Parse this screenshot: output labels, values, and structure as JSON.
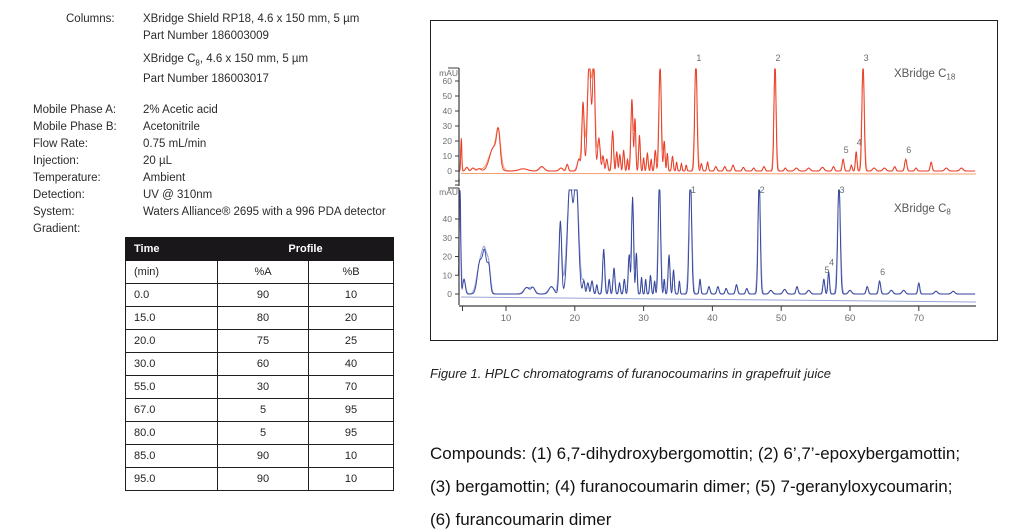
{
  "method": {
    "columns_label": "Columns:",
    "column1": {
      "line1": "XBridge Shield RP18, 4.6 x 150 mm, 5 µm",
      "line2": "Part Number 186003009"
    },
    "column2": {
      "prefix": "XBridge C",
      "sub": "8",
      "suffix": ", 4.6 x 150 mm, 5 µm",
      "line2": "Part Number 186003017"
    },
    "rows": [
      {
        "label": "Mobile Phase A:",
        "value": "2% Acetic acid"
      },
      {
        "label": "Mobile Phase B:",
        "value": "Acetonitrile"
      },
      {
        "label": "Flow Rate:",
        "value": "0.75 mL/min"
      },
      {
        "label": "Injection:",
        "value": "20 µL"
      },
      {
        "label": "Temperature:",
        "value": "Ambient"
      },
      {
        "label": "Detection:",
        "value": "UV @ 310nm"
      },
      {
        "label": "System:",
        "value": "Waters Alliance® 2695 with a 996 PDA detector"
      }
    ],
    "gradient_label": "Gradient:"
  },
  "gradient_table": {
    "header": {
      "time": "Time",
      "profile": "Profile"
    },
    "subheader": {
      "time_unit": "(min)",
      "a": "%A",
      "b": "%B"
    },
    "rows": [
      {
        "time": "0.0",
        "a": "90",
        "b": "10"
      },
      {
        "time": "15.0",
        "a": "80",
        "b": "20"
      },
      {
        "time": "20.0",
        "a": "75",
        "b": "25"
      },
      {
        "time": "30.0",
        "a": "60",
        "b": "40"
      },
      {
        "time": "55.0",
        "a": "30",
        "b": "70"
      },
      {
        "time": "67.0",
        "a": "5",
        "b": "95"
      },
      {
        "time": "80.0",
        "a": "5",
        "b": "95"
      },
      {
        "time": "85.0",
        "a": "90",
        "b": "10"
      },
      {
        "time": "95.0",
        "a": "90",
        "b": "10"
      }
    ]
  },
  "figure": {
    "caption": "Figure 1.  HPLC chromatograms of furanocoumarins in grapefruit juice",
    "compounds_lines": [
      "Compounds: (1) 6,7-dihydroxybergomottin; (2) 6’,7’-epoxybergamottin;",
      "(3) bergamottin; (4) furanocoumarin dimer; (5) 7-geranyloxycoumarin;",
      "(6) furancoumarin dimer"
    ]
  },
  "chart_data": [
    {
      "id": "c18",
      "type": "line",
      "title": "XBridge C18 chromatogram of furanocoumarins in grapefruit juice",
      "instrument_label": {
        "prefix": "XBridge C",
        "sub": "18"
      },
      "ylabel": "mAU",
      "yticks": [
        0,
        10,
        20,
        30,
        40,
        50,
        60
      ],
      "xticks": [
        10,
        20,
        30,
        40,
        50,
        60,
        70
      ],
      "xlim": [
        3.1,
        78.2
      ],
      "ylim_display": [
        0,
        68
      ],
      "x_units": "min",
      "color": "#e8392b",
      "color_light": "#f59f6b",
      "peaks": [
        [
          3.5,
          22,
          0.1
        ],
        [
          4.3,
          2.5,
          0.25
        ],
        [
          5.2,
          2,
          0.3
        ],
        [
          6.1,
          1.5,
          0.4
        ],
        [
          8.2,
          16,
          0.8
        ],
        [
          8.9,
          21,
          0.35
        ],
        [
          12.5,
          1.5,
          0.8
        ],
        [
          15.2,
          3,
          0.45
        ],
        [
          18.0,
          2,
          0.35
        ],
        [
          18.9,
          4.5,
          0.2
        ],
        [
          20.6,
          8,
          0.3
        ],
        [
          21.2,
          46,
          0.22
        ],
        [
          22.1,
          75,
          0.35
        ],
        [
          22.75,
          70,
          0.25
        ],
        [
          23.5,
          22,
          0.25
        ],
        [
          24.1,
          10,
          0.18
        ],
        [
          24.65,
          8,
          0.18
        ],
        [
          25.5,
          27,
          0.18
        ],
        [
          26.1,
          13,
          0.15
        ],
        [
          26.55,
          11,
          0.15
        ],
        [
          27.1,
          14,
          0.15
        ],
        [
          27.65,
          8,
          0.12
        ],
        [
          28.3,
          48,
          0.2
        ],
        [
          28.75,
          35,
          0.15
        ],
        [
          29.4,
          24,
          0.15
        ],
        [
          30.0,
          9,
          0.12
        ],
        [
          30.55,
          12,
          0.15
        ],
        [
          31.1,
          8,
          0.12
        ],
        [
          31.7,
          14,
          0.15
        ],
        [
          32.4,
          72,
          0.22
        ],
        [
          33.0,
          20,
          0.15
        ],
        [
          33.45,
          12,
          0.12
        ],
        [
          34.2,
          10,
          0.15
        ],
        [
          34.8,
          6,
          0.12
        ],
        [
          35.5,
          5,
          0.12
        ],
        [
          36.2,
          4,
          0.12
        ],
        [
          37.6,
          76,
          0.22
        ],
        [
          38.4,
          5,
          0.15
        ],
        [
          39.3,
          6,
          0.15
        ],
        [
          40.5,
          3,
          0.2
        ],
        [
          41.8,
          3,
          0.2
        ],
        [
          43.0,
          4,
          0.2
        ],
        [
          44.5,
          2.5,
          0.2
        ],
        [
          46.0,
          2,
          0.2
        ],
        [
          47.5,
          3,
          0.2
        ],
        [
          49.1,
          74,
          0.2
        ],
        [
          50.6,
          2,
          0.2
        ],
        [
          52.2,
          2,
          0.3
        ],
        [
          54.0,
          2,
          0.3
        ],
        [
          56.0,
          2.5,
          0.3
        ],
        [
          57.6,
          3,
          0.2
        ],
        [
          59.0,
          8,
          0.18
        ],
        [
          60.2,
          4,
          0.15
        ],
        [
          60.9,
          13,
          0.15
        ],
        [
          61.9,
          73,
          0.22
        ],
        [
          63.5,
          2,
          0.3
        ],
        [
          65.0,
          2,
          0.3
        ],
        [
          66.5,
          3,
          0.2
        ],
        [
          68.1,
          8,
          0.2
        ],
        [
          69.6,
          2,
          0.2
        ],
        [
          71.8,
          6,
          0.18
        ],
        [
          74.0,
          2,
          0.3
        ],
        [
          76.2,
          2,
          0.3
        ]
      ],
      "peak_annotations": [
        {
          "label": "1",
          "t": 37.6,
          "h": 76
        },
        {
          "label": "2",
          "t": 49.1,
          "h": 74
        },
        {
          "label": "3",
          "t": 61.9,
          "h": 73
        },
        {
          "label": "4",
          "t": 60.9,
          "h": 13
        },
        {
          "label": "5",
          "t": 59.0,
          "h": 8
        },
        {
          "label": "6",
          "t": 68.1,
          "h": 8
        }
      ]
    },
    {
      "id": "c8",
      "type": "line",
      "title": "XBridge C8 chromatogram of furanocoumarins in grapefruit juice",
      "instrument_label": {
        "prefix": "XBridge C",
        "sub": "8"
      },
      "ylabel": "mAU",
      "yticks": [
        0,
        10,
        20,
        30,
        40
      ],
      "xticks": [
        10,
        20,
        30,
        40,
        50,
        60,
        70
      ],
      "xlim": [
        3.1,
        78.2
      ],
      "ylim_display": [
        0,
        55
      ],
      "x_units": "min",
      "color": "#33429b",
      "color_light": "#98a4d6",
      "peaks": [
        [
          3.3,
          58,
          0.15
        ],
        [
          3.9,
          8,
          0.25
        ],
        [
          6.2,
          17,
          0.5
        ],
        [
          6.9,
          21,
          0.4
        ],
        [
          7.5,
          14,
          0.3
        ],
        [
          13.0,
          3.5,
          0.5
        ],
        [
          13.9,
          3.5,
          0.4
        ],
        [
          16.6,
          4,
          0.5
        ],
        [
          17.9,
          39,
          0.25
        ],
        [
          19.3,
          60,
          0.5
        ],
        [
          20.2,
          60,
          0.45
        ],
        [
          21.3,
          7,
          0.2
        ],
        [
          21.9,
          6,
          0.2
        ],
        [
          22.5,
          7,
          0.2
        ],
        [
          23.2,
          5,
          0.15
        ],
        [
          24.2,
          24,
          0.2
        ],
        [
          25.0,
          8,
          0.15
        ],
        [
          25.7,
          14,
          0.18
        ],
        [
          26.5,
          6,
          0.15
        ],
        [
          27.2,
          8,
          0.15
        ],
        [
          27.9,
          21,
          0.18
        ],
        [
          28.4,
          52,
          0.2
        ],
        [
          28.95,
          22,
          0.15
        ],
        [
          29.7,
          9,
          0.12
        ],
        [
          30.3,
          8,
          0.12
        ],
        [
          31.0,
          10,
          0.15
        ],
        [
          31.6,
          7,
          0.12
        ],
        [
          32.3,
          62,
          0.22
        ],
        [
          33.0,
          8,
          0.12
        ],
        [
          33.7,
          21,
          0.18
        ],
        [
          34.35,
          13,
          0.15
        ],
        [
          35.2,
          7,
          0.12
        ],
        [
          36.8,
          64,
          0.25
        ],
        [
          38.2,
          8,
          0.15
        ],
        [
          39.5,
          4,
          0.2
        ],
        [
          40.8,
          4,
          0.2
        ],
        [
          42.0,
          3,
          0.2
        ],
        [
          43.5,
          5,
          0.2
        ],
        [
          45.0,
          3,
          0.2
        ],
        [
          46.8,
          62,
          0.22
        ],
        [
          48.5,
          2,
          0.3
        ],
        [
          50.5,
          2.5,
          0.3
        ],
        [
          52.3,
          4,
          0.2
        ],
        [
          54.0,
          2,
          0.3
        ],
        [
          56.2,
          8,
          0.18
        ],
        [
          56.9,
          12,
          0.16
        ],
        [
          58.4,
          60,
          0.25
        ],
        [
          60.0,
          2,
          0.3
        ],
        [
          62.5,
          4,
          0.2
        ],
        [
          64.3,
          7,
          0.2
        ],
        [
          66.0,
          2,
          0.3
        ],
        [
          67.8,
          2,
          0.3
        ],
        [
          70.0,
          6,
          0.18
        ],
        [
          72.5,
          1.5,
          0.3
        ],
        [
          75.0,
          1.5,
          0.3
        ]
      ],
      "peak_annotations": [
        {
          "label": "1",
          "t": 36.8,
          "h": 64
        },
        {
          "label": "2",
          "t": 46.8,
          "h": 62
        },
        {
          "label": "3",
          "t": 58.4,
          "h": 60
        },
        {
          "label": "4",
          "t": 56.9,
          "h": 12
        },
        {
          "label": "5",
          "t": 56.2,
          "h": 8
        },
        {
          "label": "6",
          "t": 64.3,
          "h": 7
        }
      ]
    }
  ]
}
